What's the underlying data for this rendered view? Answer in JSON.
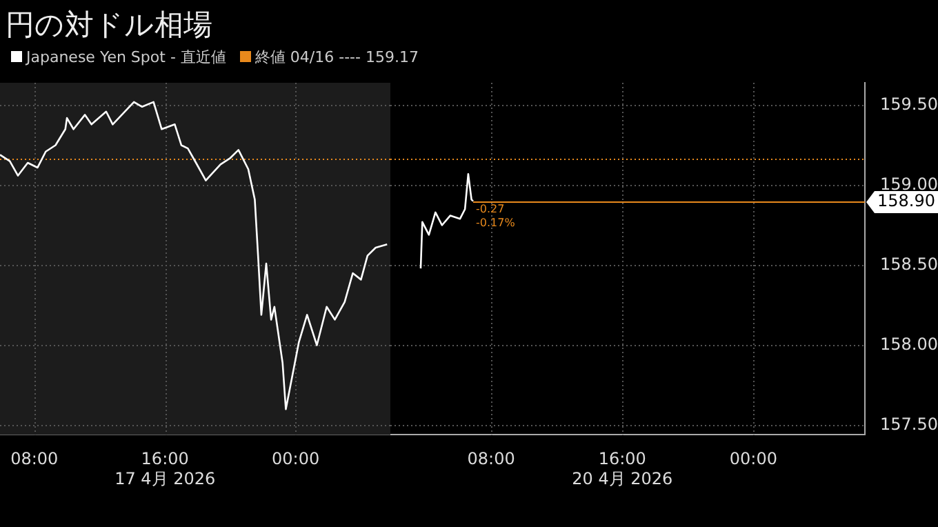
{
  "chart_data": [
    {
      "type": "line",
      "title": "円の対ドル相場",
      "x": [
        5.9,
        6.5,
        7.0,
        7.6,
        8.2,
        8.7,
        9.3,
        9.9,
        10.0,
        10.4,
        11.1,
        11.5,
        12.4,
        12.8,
        14.1,
        14.6,
        15.3,
        15.8,
        16.6,
        17.0,
        17.4,
        17.9,
        18.5,
        19.4,
        20.0,
        20.5,
        21.1,
        21.5,
        21.7,
        21.9,
        22.2,
        22.5,
        22.7,
        23.2,
        23.4,
        23.8,
        24.2,
        24.7,
        25.3,
        25.9,
        26.4,
        27.0,
        27.5,
        28.0,
        28.4,
        28.9,
        29.6
      ],
      "series": [
        {
          "name": "Japanese Yen Spot - 直近値",
          "color": "#ffffff",
          "values": [
            159.19,
            159.15,
            159.06,
            159.14,
            159.11,
            159.21,
            159.25,
            159.35,
            159.42,
            159.35,
            159.44,
            159.38,
            159.46,
            159.38,
            159.52,
            159.49,
            159.52,
            159.35,
            159.38,
            159.25,
            159.23,
            159.14,
            159.03,
            159.13,
            159.17,
            159.22,
            159.1,
            158.91,
            158.56,
            158.19,
            158.51,
            158.16,
            158.24,
            157.89,
            157.6,
            157.81,
            158.02,
            158.19,
            158.0,
            158.24,
            158.16,
            158.27,
            158.45,
            158.41,
            158.56,
            158.61,
            158.63
          ]
        }
      ],
      "xlim": [
        5.9,
        29.8
      ],
      "xticks": [
        {
          "value": 8,
          "label": "08:00"
        },
        {
          "value": 16,
          "label": "16:00\n17 4月 2026"
        },
        {
          "value": 24,
          "label": "00:00"
        }
      ],
      "ylim": [
        157.44,
        159.64
      ],
      "yticks": [
        157.5,
        158,
        158.5,
        159,
        159.5
      ],
      "ref_lines": [
        {
          "axis": "y",
          "value": 159.17,
          "label": "終値 04/16 ---- 159.17",
          "color": "#e8891c",
          "line_style": "dotted"
        }
      ],
      "bands": [
        {
          "axis": "x",
          "from": 5.9,
          "to": 29.8,
          "color": "#1c1c1c"
        }
      ],
      "grid": true,
      "legend": "top left",
      "marker": "none",
      "line_style": "solid",
      "tick_labels": "x"
    },
    {
      "type": "line",
      "x": [
        3.7,
        3.8,
        4.2,
        4.6,
        5.0,
        5.5,
        6.1,
        6.4,
        6.6,
        6.8,
        6.9
      ],
      "series": [
        {
          "color": "#ffffff",
          "values": [
            158.48,
            158.77,
            158.69,
            158.83,
            158.75,
            158.81,
            158.79,
            158.85,
            159.07,
            158.91,
            158.9
          ]
        }
      ],
      "xlim": [
        1.85,
        30.8
      ],
      "xticks": [
        {
          "value": 8,
          "label": "08:00"
        },
        {
          "value": 16,
          "label": "16:00\n20 4月 2026"
        },
        {
          "value": 24,
          "label": "00:00"
        }
      ],
      "ylim": [
        157.44,
        159.64
      ],
      "yticks": [
        {
          "value": 157.5,
          "label": "157.50"
        },
        {
          "value": 158,
          "label": "158.00"
        },
        {
          "value": 158.5,
          "label": "158.50"
        },
        {
          "value": 159,
          "label": "159.00"
        },
        {
          "value": 159.5,
          "label": "159.50"
        }
      ],
      "ref_lines": [
        {
          "axis": "y",
          "value": 159.17,
          "color": "#e8891c",
          "line_style": "dotted"
        },
        {
          "axis": "y",
          "value": 158.9,
          "label": "158.90",
          "color": "#e8891c",
          "line_style": "solid"
        }
      ],
      "annotations": [
        {
          "text": "-0.27",
          "x": 6.9,
          "y": 158.9
        },
        {
          "text": "-0.17%",
          "x": 6.9,
          "y": 158.9
        }
      ],
      "grid": true,
      "marker": "none",
      "line_style": "solid"
    }
  ]
}
